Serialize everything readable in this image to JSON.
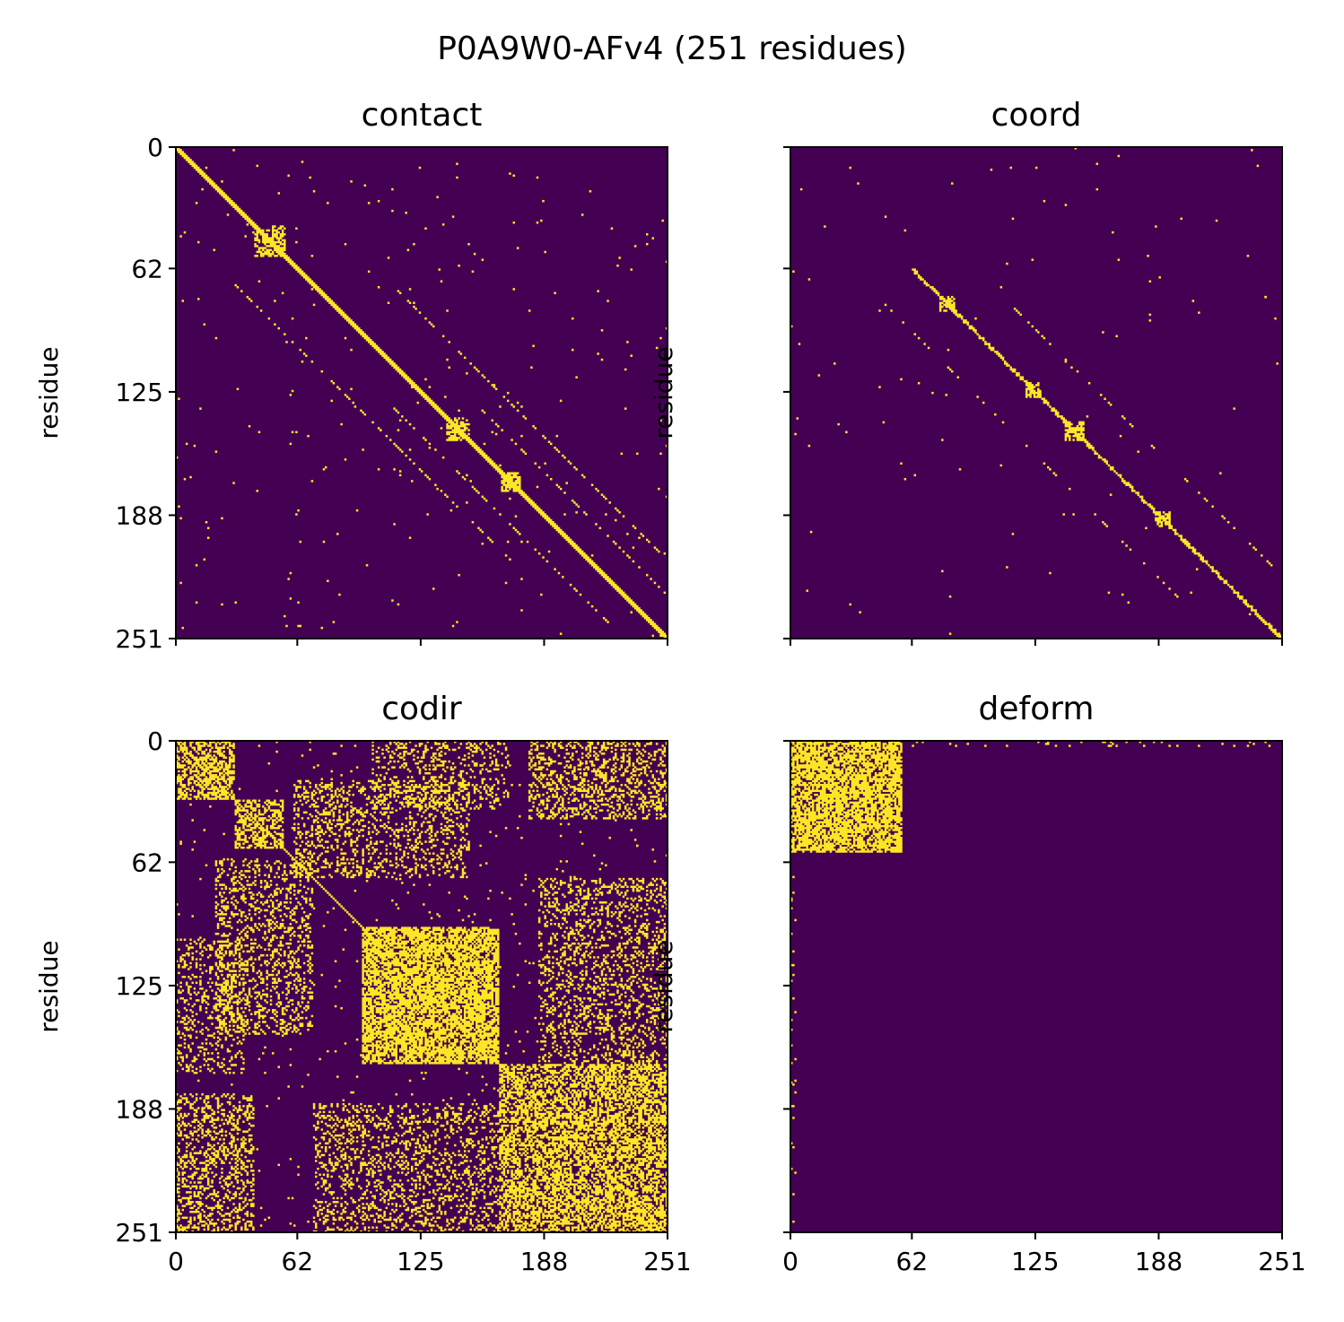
{
  "chart_data": {
    "title": "P0A9W0-AFv4 (251 residues)",
    "type": "heatmap",
    "n_residues": 251,
    "colormap": {
      "low": "#440154",
      "high": "#fde725"
    },
    "tick_values": [
      0,
      62,
      125,
      188,
      251
    ],
    "tick_labels": [
      "0",
      "62",
      "125",
      "188",
      "251"
    ],
    "panels": [
      {
        "title": "contact",
        "ylabel": "residue",
        "show_x_ticklabels": false,
        "show_y_ticklabels": true,
        "bands": [
          {
            "offset": 0,
            "width": 3
          },
          {
            "offset": 40,
            "width": 1,
            "from": 70,
            "to": 215,
            "gaps": 0.55
          },
          {
            "offset": -40,
            "width": 1,
            "from": 70,
            "to": 215,
            "gaps": 0.55
          },
          {
            "offset": 22,
            "width": 1,
            "from": 130,
            "to": 245,
            "gaps": 0.6
          },
          {
            "offset": -22,
            "width": 1,
            "from": 130,
            "to": 245,
            "gaps": 0.6
          }
        ],
        "blocks": [
          {
            "r0": 40,
            "r1": 56,
            "c0": 40,
            "c1": 56
          },
          {
            "r0": 138,
            "r1": 150,
            "c0": 138,
            "c1": 150
          },
          {
            "r0": 166,
            "r1": 176,
            "c0": 166,
            "c1": 176
          }
        ],
        "noise": 0.004
      },
      {
        "title": "coord",
        "ylabel": "residue",
        "show_x_ticklabels": false,
        "show_y_ticklabels": false,
        "bands": [
          {
            "offset": 0,
            "width": 1,
            "from": 62,
            "to": 251
          },
          {
            "offset": 1,
            "width": 1,
            "from": 62,
            "to": 251,
            "gaps": 0.5
          },
          {
            "offset": -1,
            "width": 1,
            "from": 62,
            "to": 251,
            "gaps": 0.5
          },
          {
            "offset": 32,
            "width": 1,
            "from": 80,
            "to": 230,
            "gaps": 0.75
          },
          {
            "offset": -32,
            "width": 1,
            "from": 80,
            "to": 230,
            "gaps": 0.75
          }
        ],
        "blocks": [
          {
            "r0": 76,
            "r1": 84,
            "c0": 76,
            "c1": 84
          },
          {
            "r0": 120,
            "r1": 128,
            "c0": 120,
            "c1": 128
          },
          {
            "r0": 186,
            "r1": 194,
            "c0": 186,
            "c1": 194
          },
          {
            "r0": 140,
            "r1": 150,
            "c0": 140,
            "c1": 150
          }
        ],
        "noise": 0.0015
      },
      {
        "title": "codir",
        "ylabel": "residue",
        "show_x_ticklabels": true,
        "show_y_ticklabels": true,
        "bands": [
          {
            "offset": 0,
            "width": 1
          }
        ],
        "blocks": [
          {
            "r0": 0,
            "r1": 30,
            "c0": 0,
            "c1": 30,
            "density": 0.55
          },
          {
            "r0": 30,
            "r1": 55,
            "c0": 30,
            "c1": 55,
            "density": 0.5
          },
          {
            "r0": 95,
            "r1": 165,
            "c0": 95,
            "c1": 165,
            "density": 0.7
          },
          {
            "r0": 165,
            "r1": 251,
            "c0": 165,
            "c1": 251,
            "density": 0.55
          },
          {
            "r0": 180,
            "r1": 251,
            "c0": 0,
            "c1": 40,
            "density": 0.3
          },
          {
            "r0": 0,
            "r1": 40,
            "c0": 180,
            "c1": 251,
            "density": 0.3
          },
          {
            "r0": 60,
            "r1": 150,
            "c0": 20,
            "c1": 70,
            "density": 0.25
          },
          {
            "r0": 20,
            "r1": 70,
            "c0": 60,
            "c1": 150,
            "density": 0.25
          },
          {
            "r0": 185,
            "r1": 251,
            "c0": 70,
            "c1": 165,
            "density": 0.22
          },
          {
            "r0": 70,
            "r1": 165,
            "c0": 185,
            "c1": 251,
            "density": 0.22
          },
          {
            "r0": 0,
            "r1": 35,
            "c0": 100,
            "c1": 170,
            "density": 0.2
          },
          {
            "r0": 100,
            "r1": 170,
            "c0": 0,
            "c1": 35,
            "density": 0.2
          }
        ],
        "noise": 0.01
      },
      {
        "title": "deform",
        "ylabel": "residue",
        "show_x_ticklabels": true,
        "show_y_ticklabels": false,
        "bands": [
          {
            "offset": 0,
            "width": 1,
            "from": 0,
            "to": 30
          }
        ],
        "blocks": [
          {
            "r0": 0,
            "r1": 57,
            "c0": 0,
            "c1": 57,
            "density": 0.72
          },
          {
            "r0": 0,
            "r1": 3,
            "c0": 57,
            "c1": 251,
            "density": 0.06
          },
          {
            "r0": 57,
            "r1": 251,
            "c0": 0,
            "c1": 3,
            "density": 0.06
          }
        ],
        "noise": 0
      }
    ]
  }
}
